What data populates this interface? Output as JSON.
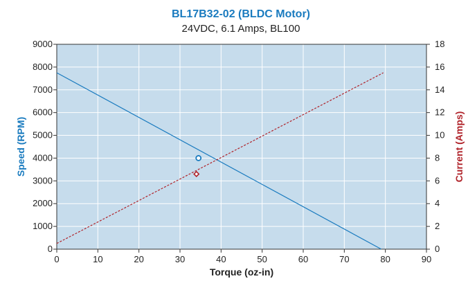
{
  "chart_data": {
    "type": "line",
    "title": "BL17B32-02 (BLDC Motor)",
    "subtitle": "24VDC, 6.1 Amps, BL100",
    "xlabel": "Torque (oz-in)",
    "ylabel": "Speed (RPM)",
    "y2label": "Current (Amps)",
    "xlim": [
      0,
      90
    ],
    "ylim": [
      0,
      9000
    ],
    "y2lim": [
      0,
      18
    ],
    "x_ticks": [
      0,
      10,
      20,
      30,
      40,
      50,
      60,
      70,
      80,
      90
    ],
    "y_ticks": [
      0,
      1000,
      2000,
      3000,
      4000,
      5000,
      6000,
      7000,
      8000,
      9000
    ],
    "y2_ticks": [
      0,
      2,
      4,
      6,
      8,
      10,
      12,
      14,
      16,
      18
    ],
    "grid": true,
    "series": [
      {
        "name": "Speed (RPM)",
        "axis": "left",
        "color": "#1a7bbf",
        "style": "solid",
        "x": [
          0,
          79
        ],
        "y": [
          7750,
          0
        ]
      },
      {
        "name": "Current (Amps)",
        "axis": "right",
        "color": "#b0232a",
        "style": "dashed",
        "x": [
          0,
          79.5
        ],
        "y": [
          0.5,
          15.5
        ]
      }
    ],
    "markers": [
      {
        "series": "Speed (RPM)",
        "shape": "circle",
        "x": 34.5,
        "y": 4000
      },
      {
        "series": "Current (Amps)",
        "shape": "diamond",
        "x": 34,
        "y": 6.6
      }
    ],
    "colors": {
      "plot_background": "#c6dcec",
      "grid": "#ffffff",
      "title": "#1a7bbf",
      "speed": "#1a7bbf",
      "current": "#b0232a"
    }
  }
}
